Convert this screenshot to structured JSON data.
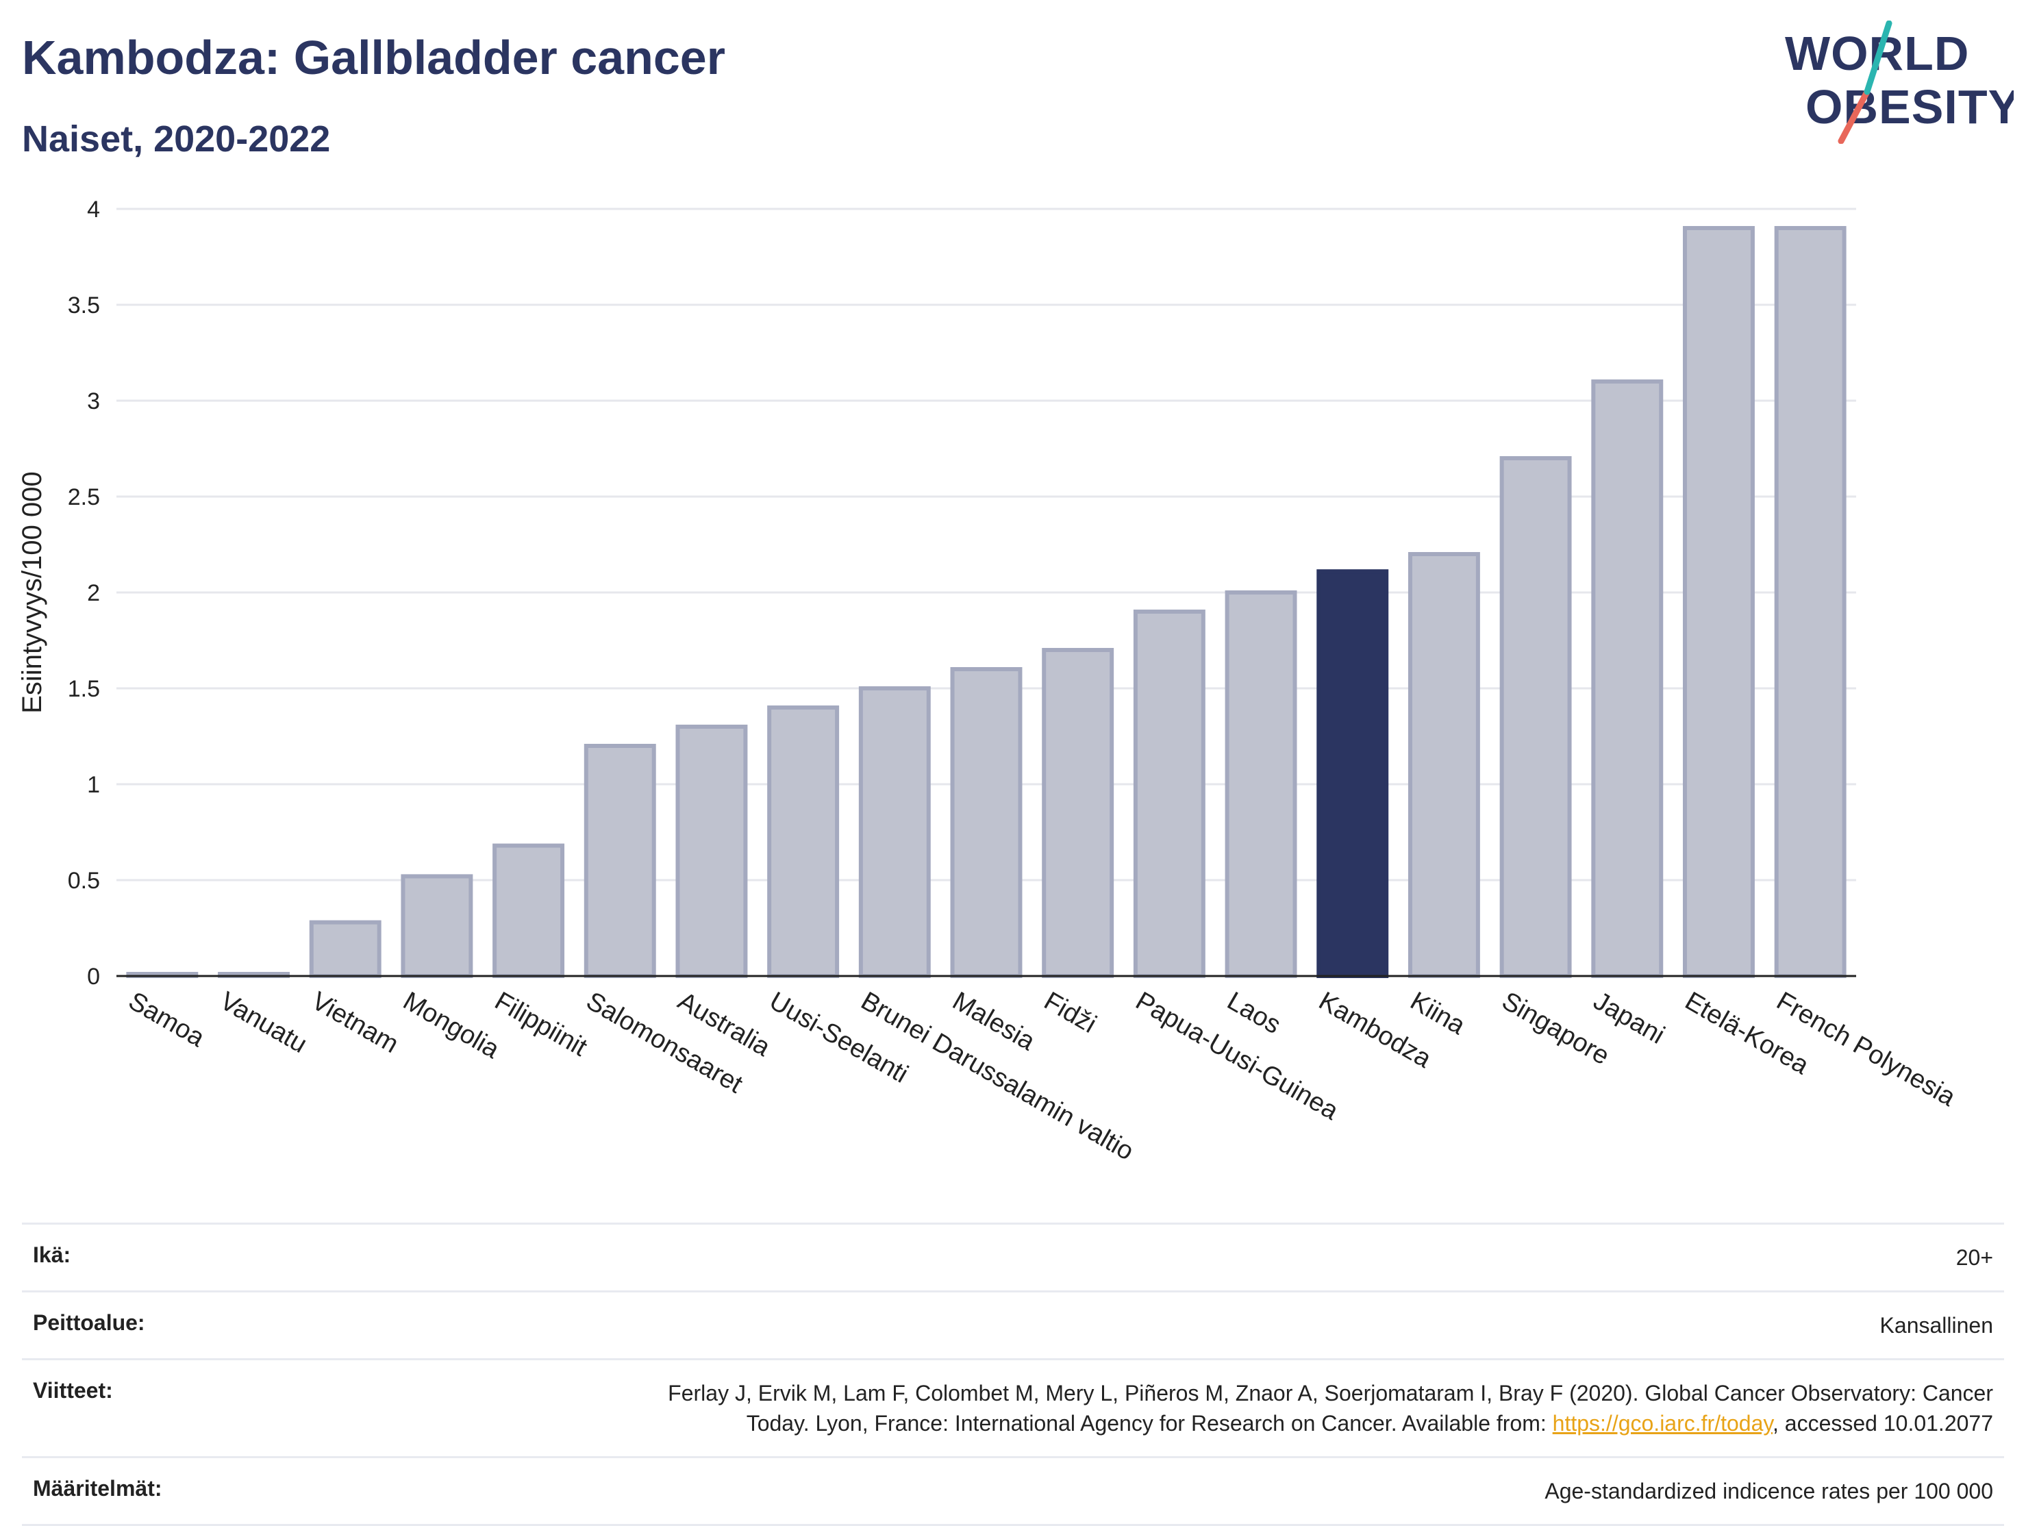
{
  "header": {
    "title": "Kambodza: Gallbladder cancer",
    "subtitle": "Naiset, 2020-2022"
  },
  "logo": {
    "line1": "WORLD",
    "line2": "OBESITY",
    "accent_colors": [
      "#2bb5b0",
      "#e8675a"
    ]
  },
  "colors": {
    "bar_default": "#bfc2cf",
    "bar_default_border": "#a4a9bf",
    "bar_highlight": "#2b3561",
    "grid": "#e6e7ec",
    "text": "#2b3561"
  },
  "chart_data": {
    "type": "bar",
    "title": "Kambodza: Gallbladder cancer",
    "subtitle": "Naiset, 2020-2022",
    "ylabel": "Esiintyvyys/100 000",
    "xlabel": "",
    "ylim": [
      0,
      4
    ],
    "yticks": [
      "0",
      "0.5",
      "1",
      "1.5",
      "2",
      "2.5",
      "3",
      "3.5",
      "4"
    ],
    "grid": true,
    "highlight": "Kambodza",
    "categories": [
      "Samoa",
      "Vanuatu",
      "Vietnam",
      "Mongolia",
      "Filippiinit",
      "Salomonsaaret",
      "Australia",
      "Uusi-Seelanti",
      "Brunei Darussalamin valtio",
      "Malesia",
      "Fidži",
      "Papua-Uusi-Guinea",
      "Laos",
      "Kambodza",
      "Kiina",
      "Singapore",
      "Japani",
      "Etelä-Korea",
      "French Polynesia"
    ],
    "values": [
      0.01,
      0.01,
      0.28,
      0.52,
      0.68,
      1.2,
      1.3,
      1.4,
      1.5,
      1.6,
      1.7,
      1.9,
      2.0,
      2.11,
      2.2,
      2.7,
      3.1,
      3.9,
      3.9
    ]
  },
  "info": {
    "rows": [
      {
        "label": "Ikä:",
        "value": "20+"
      },
      {
        "label": "Peittoalue:",
        "value": "Kansallinen"
      },
      {
        "label": "Viitteet:",
        "value_line1": "Ferlay J, Ervik M, Lam F, Colombet M, Mery L, Piñeros M, Znaor A, Soerjomataram I, Bray F (2020). Global Cancer Observatory: Cancer",
        "value_line2_pre": "Today. Lyon, France: International Agency for Research on Cancer. Available from: ",
        "link": "https://gco.iarc.fr/today",
        "value_line2_post": ", accessed 10.01.2077"
      },
      {
        "label": "Määritelmät:",
        "value": "Age-standardized indicence rates per 100 000"
      }
    ]
  }
}
